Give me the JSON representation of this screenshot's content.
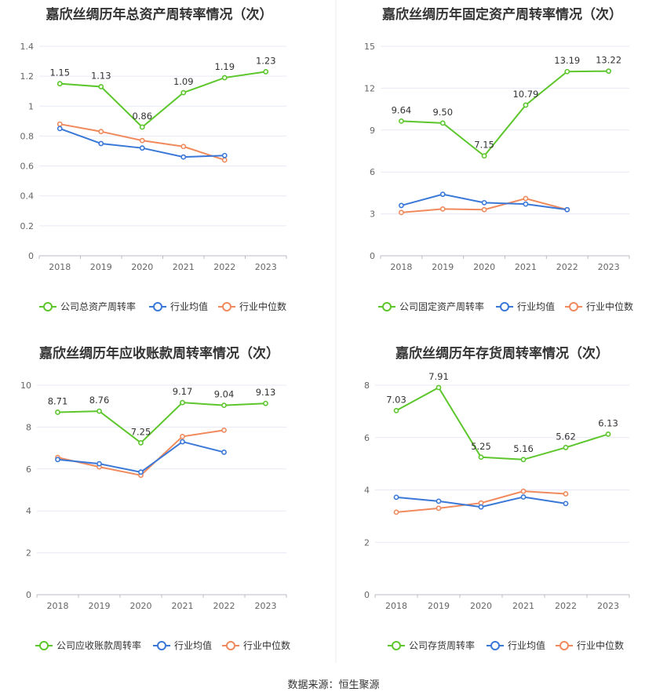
{
  "colors": {
    "company": "#5cc62c",
    "avg": "#3a78d8",
    "median": "#f08a5d"
  },
  "legend": [
    "公司总资产周转率",
    "行业均值",
    "行业中位数"
  ],
  "source": "数据来源：恒生聚源",
  "chart_data": [
    {
      "type": "line",
      "title": "嘉欣丝绸历年总资产周转率情况（次）",
      "categories": [
        "2018",
        "2019",
        "2020",
        "2021",
        "2022",
        "2023"
      ],
      "ylim": [
        0,
        1.4
      ],
      "yticks": [
        "0",
        "0.2",
        "0.4",
        "0.6",
        "0.8",
        "1",
        "1.2",
        "1.4"
      ],
      "legend": [
        "公司总资产周转率",
        "行业均值",
        "行业中位数"
      ],
      "series": [
        {
          "name": "公司总资产周转率",
          "values": [
            1.15,
            1.13,
            0.86,
            1.09,
            1.19,
            1.23
          ],
          "labels": [
            "1.15",
            "1.13",
            "0.86",
            "1.09",
            "1.19",
            "1.23"
          ]
        },
        {
          "name": "行业均值",
          "values": [
            0.85,
            0.75,
            0.72,
            0.66,
            0.67,
            null
          ]
        },
        {
          "name": "行业中位数",
          "values": [
            0.88,
            0.83,
            0.77,
            0.73,
            0.64,
            null
          ]
        }
      ]
    },
    {
      "type": "line",
      "title": "嘉欣丝绸历年固定资产周转率情况（次）",
      "categories": [
        "2018",
        "2019",
        "2020",
        "2021",
        "2022",
        "2023"
      ],
      "ylim": [
        0,
        15
      ],
      "yticks": [
        "0",
        "3",
        "6",
        "9",
        "12",
        "15"
      ],
      "legend": [
        "公司固定资产周转率",
        "行业均值",
        "行业中位数"
      ],
      "series": [
        {
          "name": "公司固定资产周转率",
          "values": [
            9.64,
            9.5,
            7.15,
            10.79,
            13.19,
            13.22
          ],
          "labels": [
            "9.64",
            "9.50",
            "7.15",
            "10.79",
            "13.19",
            "13.22"
          ]
        },
        {
          "name": "行业均值",
          "values": [
            3.6,
            4.4,
            3.8,
            3.7,
            3.3,
            null
          ]
        },
        {
          "name": "行业中位数",
          "values": [
            3.1,
            3.35,
            3.3,
            4.1,
            3.3,
            null
          ]
        }
      ]
    },
    {
      "type": "line",
      "title": "嘉欣丝绸历年应收账款周转率情况（次）",
      "categories": [
        "2018",
        "2019",
        "2020",
        "2021",
        "2022",
        "2023"
      ],
      "ylim": [
        0,
        10
      ],
      "yticks": [
        "0",
        "2",
        "4",
        "6",
        "8",
        "10"
      ],
      "legend": [
        "公司应收账款周转率",
        "行业均值",
        "行业中位数"
      ],
      "series": [
        {
          "name": "公司应收账款周转率",
          "values": [
            8.71,
            8.76,
            7.25,
            9.17,
            9.04,
            9.13
          ],
          "labels": [
            "8.71",
            "8.76",
            "7.25",
            "9.17",
            "9.04",
            "9.13"
          ]
        },
        {
          "name": "行业均值",
          "values": [
            6.45,
            6.25,
            5.85,
            7.3,
            6.8,
            null
          ]
        },
        {
          "name": "行业中位数",
          "values": [
            6.55,
            6.1,
            5.7,
            7.55,
            7.85,
            null
          ]
        }
      ]
    },
    {
      "type": "line",
      "title": "嘉欣丝绸历年存货周转率情况（次）",
      "categories": [
        "2018",
        "2019",
        "2020",
        "2021",
        "2022",
        "2023"
      ],
      "ylim": [
        0,
        8
      ],
      "yticks": [
        "0",
        "2",
        "4",
        "6",
        "8"
      ],
      "legend": [
        "公司存货周转率",
        "行业均值",
        "行业中位数"
      ],
      "series": [
        {
          "name": "公司存货周转率",
          "values": [
            7.03,
            7.91,
            5.25,
            5.16,
            5.62,
            6.13
          ],
          "labels": [
            "7.03",
            "7.91",
            "5.25",
            "5.16",
            "5.62",
            "6.13"
          ]
        },
        {
          "name": "行业均值",
          "values": [
            3.72,
            3.57,
            3.35,
            3.73,
            3.48,
            null
          ]
        },
        {
          "name": "行业中位数",
          "values": [
            3.15,
            3.3,
            3.5,
            3.95,
            3.85,
            null
          ]
        }
      ]
    }
  ]
}
